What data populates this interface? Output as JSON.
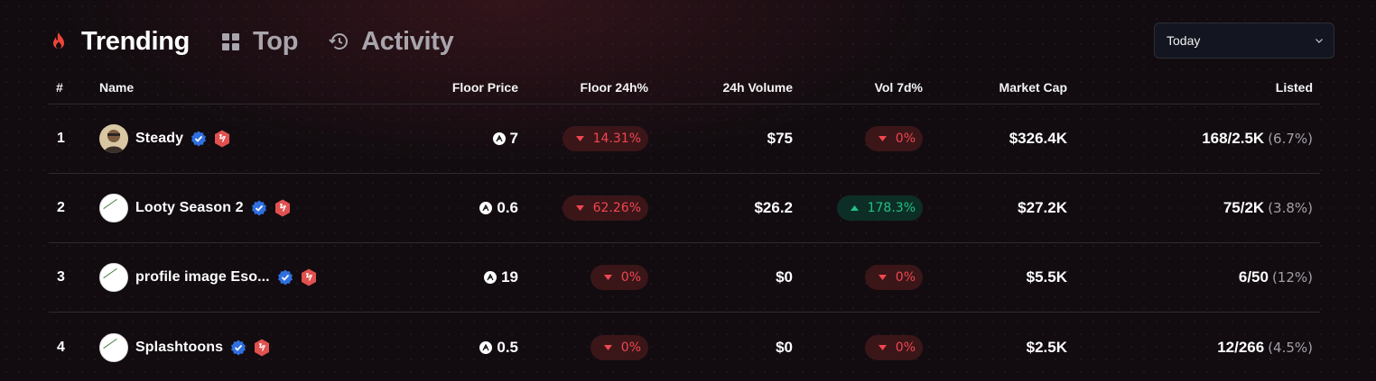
{
  "tabs": [
    {
      "label": "Trending",
      "icon": "fire-icon",
      "active": true
    },
    {
      "label": "Top",
      "icon": "grid-icon",
      "active": false
    },
    {
      "label": "Activity",
      "icon": "history-icon",
      "active": false
    }
  ],
  "period_select": {
    "value": "Today"
  },
  "columns": {
    "rank": "#",
    "name": "Name",
    "floor_price": "Floor Price",
    "floor_24h": "Floor 24h%",
    "volume_24h": "24h Volume",
    "vol_7d": "Vol 7d%",
    "market_cap": "Market Cap",
    "listed": "Listed"
  },
  "rows": [
    {
      "rank": "1",
      "name": "Steady",
      "avatar": "photo",
      "floor_price": "7",
      "floor_24h": "14.31%",
      "floor_24h_dir": "down",
      "volume_24h": "$75",
      "vol_7d": "0%",
      "vol_7d_dir": "down",
      "market_cap": "$326.4K",
      "listed": "168/2.5K",
      "listed_pct": "(6.7%)"
    },
    {
      "rank": "2",
      "name": "Looty Season 2",
      "avatar": "broken",
      "floor_price": "0.6",
      "floor_24h": "62.26%",
      "floor_24h_dir": "down",
      "volume_24h": "$26.2",
      "vol_7d": "178.3%",
      "vol_7d_dir": "up",
      "market_cap": "$27.2K",
      "listed": "75/2K",
      "listed_pct": "(3.8%)"
    },
    {
      "rank": "3",
      "name": "profile image Eso...",
      "avatar": "broken",
      "floor_price": "19",
      "floor_24h": "0%",
      "floor_24h_dir": "down",
      "volume_24h": "$0",
      "vol_7d": "0%",
      "vol_7d_dir": "down",
      "market_cap": "$5.5K",
      "listed": "6/50",
      "listed_pct": "(12%)"
    },
    {
      "rank": "4",
      "name": "Splashtoons",
      "avatar": "broken",
      "floor_price": "0.5",
      "floor_24h": "0%",
      "floor_24h_dir": "down",
      "volume_24h": "$0",
      "vol_7d": "0%",
      "vol_7d_dir": "down",
      "market_cap": "$2.5K",
      "listed": "12/266",
      "listed_pct": "(4.5%)"
    }
  ],
  "colors": {
    "down": "#f1464f",
    "down_bg": "#3a1619",
    "up": "#22c184",
    "up_bg": "#0d2e26",
    "fire": "#f0443a",
    "verified": "#2f6fe0",
    "marketplace_badge": "#e0514f"
  }
}
